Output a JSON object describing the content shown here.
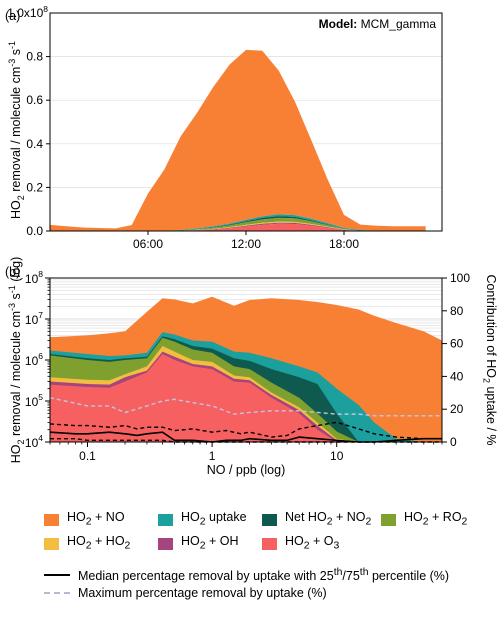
{
  "chart_data": [
    {
      "panel_label": "(a)",
      "type": "area",
      "stacked": true,
      "annotation": {
        "bold": "Model:",
        "rest": " MCM_gamma"
      },
      "ylabel": "HO<sub>2</sub> removal / molecule cm<sup>-3</sup> s<sup>-1</sup>",
      "y_multiplier": "1.0x10",
      "y_multiplier_exp": "8",
      "ylim": [
        0,
        1.0
      ],
      "yticks": [
        0.0,
        0.2,
        0.4,
        0.6,
        0.8
      ],
      "ytick_labels": [
        "0.0",
        "0.2",
        "0.4",
        "0.6",
        "0.8"
      ],
      "xlim": [
        0,
        24
      ],
      "xticks": [
        6,
        12,
        18
      ],
      "xtick_labels": [
        "06:00",
        "12:00",
        "18:00"
      ],
      "grid": true,
      "x": [
        0,
        1,
        2,
        3,
        4,
        5,
        6,
        7,
        8,
        9,
        10,
        11,
        12,
        13,
        14,
        15,
        16,
        17,
        18,
        19,
        20,
        21,
        22,
        23
      ],
      "series": [
        {
          "name": "HO<sub>2</sub> + O<sub>3</sub>",
          "color": "#f76060",
          "values": [
            0.0,
            0.0,
            0.0,
            0.0,
            0.0,
            0.0,
            0.0,
            0.0,
            0.001,
            0.003,
            0.006,
            0.012,
            0.02,
            0.028,
            0.033,
            0.032,
            0.024,
            0.014,
            0.005,
            0.001,
            0.0,
            0.0,
            0.0,
            0.0
          ]
        },
        {
          "name": "HO<sub>2</sub> + OH",
          "color": "#a6447e",
          "values": [
            0.0,
            0.0,
            0.0,
            0.0,
            0.0,
            0.0,
            0.0,
            0.0,
            0.0,
            0.001,
            0.002,
            0.003,
            0.004,
            0.005,
            0.005,
            0.005,
            0.004,
            0.003,
            0.001,
            0.0,
            0.0,
            0.0,
            0.0,
            0.0
          ]
        },
        {
          "name": "HO<sub>2</sub> + HO<sub>2</sub>",
          "color": "#f2bd40",
          "values": [
            0.0,
            0.0,
            0.0,
            0.0,
            0.0,
            0.0,
            0.0,
            0.0,
            0.0,
            0.001,
            0.002,
            0.003,
            0.004,
            0.005,
            0.005,
            0.005,
            0.004,
            0.003,
            0.001,
            0.0,
            0.0,
            0.0,
            0.0,
            0.0
          ]
        },
        {
          "name": "HO<sub>2</sub> + RO<sub>2</sub>",
          "color": "#7f9f2e",
          "values": [
            0.0,
            0.0,
            0.0,
            0.0,
            0.0,
            0.0,
            0.0,
            0.0,
            0.001,
            0.003,
            0.005,
            0.008,
            0.012,
            0.015,
            0.017,
            0.016,
            0.012,
            0.007,
            0.002,
            0.0,
            0.0,
            0.0,
            0.0,
            0.0
          ]
        },
        {
          "name": "Net HO<sub>2</sub> + NO<sub>2</sub>",
          "color": "#0f5a4e",
          "values": [
            0.0,
            0.0,
            0.0,
            0.0,
            0.0,
            0.0,
            0.0,
            0.0,
            0.0,
            0.001,
            0.002,
            0.003,
            0.005,
            0.007,
            0.008,
            0.007,
            0.005,
            0.003,
            0.001,
            0.0,
            0.0,
            0.0,
            0.0,
            0.0
          ]
        },
        {
          "name": "HO<sub>2</sub> uptake",
          "color": "#1ba09e",
          "values": [
            0.002,
            0.002,
            0.002,
            0.002,
            0.002,
            0.002,
            0.002,
            0.002,
            0.002,
            0.003,
            0.004,
            0.005,
            0.006,
            0.007,
            0.008,
            0.008,
            0.007,
            0.006,
            0.004,
            0.003,
            0.002,
            0.002,
            0.002,
            0.002
          ]
        },
        {
          "name": "HO<sub>2</sub> + NO",
          "color": "#f88035",
          "values": [
            0.026,
            0.02,
            0.014,
            0.012,
            0.01,
            0.025,
            0.17,
            0.28,
            0.43,
            0.53,
            0.64,
            0.73,
            0.78,
            0.76,
            0.66,
            0.52,
            0.36,
            0.2,
            0.06,
            0.025,
            0.022,
            0.02,
            0.02,
            0.02
          ]
        }
      ]
    },
    {
      "panel_label": "(b)",
      "type": "area",
      "stacked": true,
      "xlabel": "NO / ppb (log)",
      "xscale": "log",
      "xlim": [
        0.05,
        70
      ],
      "xticks": [
        0.1,
        1,
        10
      ],
      "xtick_labels": [
        "0.1",
        "1",
        "10"
      ],
      "ylabel": "HO<sub>2</sub> removal / molecule cm<sup>-3</sup> s<sup>-1</sup> (log)",
      "yscale": "log",
      "ylim": [
        10000,
        100000000
      ],
      "yticks": [
        10000,
        100000,
        1000000,
        10000000,
        100000000
      ],
      "ytick_labels": [
        [
          "10",
          "4"
        ],
        [
          "10",
          "5"
        ],
        [
          "10",
          "6"
        ],
        [
          "10",
          "7"
        ],
        [
          "10",
          "8"
        ]
      ],
      "y2label": "Contribution of HO<sub>2</sub> uptake / %",
      "y2lim": [
        0,
        100
      ],
      "y2ticks": [
        0,
        20,
        40,
        60,
        80,
        100
      ],
      "y2tick_labels": [
        "0",
        "20",
        "40",
        "60",
        "80",
        "100"
      ],
      "grid": true,
      "x": [
        0.05,
        0.1,
        0.15,
        0.2,
        0.3,
        0.4,
        0.5,
        0.7,
        1,
        1.5,
        2,
        3,
        5,
        7,
        10,
        15,
        20,
        30,
        50,
        70
      ],
      "series": [
        {
          "name": "HO<sub>2</sub> + O<sub>3</sub>",
          "color": "#f76060",
          "cumulative_top": [
            250000,
            220000,
            210000,
            300000,
            500000,
            1400000,
            1000000,
            700000,
            600000,
            300000,
            280000,
            120000,
            50000,
            20000,
            10000,
            10000,
            10000,
            10000,
            10000,
            10000
          ]
        },
        {
          "name": "HO<sub>2</sub> + OH",
          "color": "#a6447e",
          "cumulative_top": [
            300000,
            260000,
            250000,
            380000,
            550000,
            1600000,
            1200000,
            800000,
            700000,
            350000,
            320000,
            140000,
            60000,
            25000,
            11000,
            10000,
            10000,
            10000,
            10000,
            10000
          ]
        },
        {
          "name": "HO<sub>2</sub> + HO<sub>2</sub>",
          "color": "#f2bd40",
          "cumulative_top": [
            380000,
            330000,
            320000,
            450000,
            700000,
            2200000,
            1600000,
            1000000,
            900000,
            420000,
            380000,
            160000,
            70000,
            30000,
            12000,
            10000,
            10000,
            10000,
            10000,
            10000
          ]
        },
        {
          "name": "HO<sub>2</sub> + RO<sub>2</sub>",
          "color": "#7f9f2e",
          "cumulative_top": [
            1300000,
            1000000,
            900000,
            1000000,
            1100000,
            3500000,
            2800000,
            1800000,
            1500000,
            700000,
            600000,
            280000,
            120000,
            50000,
            18000,
            10000,
            10000,
            10000,
            10000,
            10000
          ]
        },
        {
          "name": "Net HO<sub>2</sub> + NO<sub>2</sub>",
          "color": "#0f5a4e",
          "cumulative_top": [
            1400000,
            1100000,
            1000000,
            1100000,
            1200000,
            3800000,
            3200000,
            2200000,
            1900000,
            1100000,
            950000,
            600000,
            380000,
            260000,
            50000,
            10000,
            10000,
            10000,
            10000,
            10000
          ]
        },
        {
          "name": "HO<sub>2</sub> uptake",
          "color": "#1ba09e",
          "cumulative_top": [
            1700000,
            1400000,
            1250000,
            1300000,
            1500000,
            4800000,
            4200000,
            3000000,
            2800000,
            1600000,
            1500000,
            1100000,
            700000,
            500000,
            200000,
            80000,
            30000,
            12000,
            10000,
            10000
          ]
        },
        {
          "name": "HO<sub>2</sub> + NO",
          "color": "#f88035",
          "cumulative_top": [
            3600000,
            4000000,
            4500000,
            5000000,
            15000000,
            32000000,
            30000000,
            24000000,
            35000000,
            21000000,
            29000000,
            32000000,
            29000000,
            26000000,
            22000000,
            17000000,
            12000000,
            8000000,
            5000000,
            3000000
          ]
        }
      ],
      "lines": [
        {
          "name": "Median percentage removal by uptake with 25<sup>th</sup>/75<sup>th</sup> percentile (%)",
          "style": "solid",
          "color": "#000000",
          "axis": "right",
          "x": [
            0.05,
            0.08,
            0.1,
            0.15,
            0.2,
            0.25,
            0.3,
            0.4,
            0.5,
            0.7,
            1,
            1.3,
            1.7,
            2,
            3,
            4,
            5,
            7,
            10,
            15,
            20,
            30,
            50,
            70
          ],
          "values": [
            6,
            5,
            5,
            6,
            5,
            4,
            5,
            6,
            1,
            1,
            0,
            1,
            1,
            2,
            1,
            1,
            3,
            2,
            1,
            0,
            0,
            1,
            2,
            2
          ]
        },
        {
          "name": "75th percentile",
          "style": "dashed",
          "color": "#000000",
          "axis": "right",
          "x": [
            0.05,
            0.08,
            0.1,
            0.15,
            0.2,
            0.25,
            0.3,
            0.4,
            0.5,
            0.7,
            1,
            1.3,
            1.7,
            2,
            3,
            4,
            5,
            7,
            10,
            15,
            20,
            30,
            50,
            70
          ],
          "values": [
            11,
            10,
            10,
            9,
            10,
            8,
            9,
            9,
            7,
            8,
            6,
            7,
            5,
            6,
            3,
            4,
            8,
            10,
            12,
            8,
            5,
            3,
            2,
            2
          ]
        },
        {
          "name": "25th percentile",
          "style": "dashed",
          "color": "#000000",
          "axis": "right",
          "x": [
            0.05,
            0.08,
            0.1,
            0.15,
            0.2,
            0.25,
            0.3,
            0.4,
            0.5,
            0.7,
            1,
            1.3,
            1.7,
            2,
            3,
            4,
            5,
            7,
            10,
            15,
            20,
            30,
            50,
            70
          ],
          "values": [
            2,
            2,
            1,
            1,
            1,
            1,
            1,
            1,
            0,
            0,
            0,
            0,
            0,
            0,
            0,
            0,
            0,
            0,
            0,
            0,
            0,
            0,
            0,
            0
          ]
        },
        {
          "name": "Maximum percentage removal by uptake (%)",
          "style": "dashed",
          "color": "#c4c4e0",
          "axis": "right",
          "x": [
            0.05,
            0.1,
            0.15,
            0.2,
            0.3,
            0.4,
            0.5,
            0.7,
            1,
            1.5,
            2,
            3,
            5,
            7,
            10,
            15,
            20,
            30,
            50,
            70
          ],
          "values": [
            27,
            22,
            22,
            18,
            22,
            25,
            26,
            24,
            22,
            17,
            18,
            19,
            19,
            18,
            17,
            17,
            16,
            16,
            16,
            16
          ]
        }
      ]
    }
  ],
  "legend": {
    "areas": [
      {
        "label": "HO<sub>2</sub> + NO",
        "color": "#f88035"
      },
      {
        "label": "HO<sub>2</sub> uptake",
        "color": "#1ba09e"
      },
      {
        "label": "Net HO<sub>2</sub> + NO<sub>2</sub>",
        "color": "#0f5a4e"
      },
      {
        "label": "HO<sub>2</sub> + RO<sub>2</sub>",
        "color": "#7f9f2e"
      },
      {
        "label": "HO<sub>2</sub> + HO<sub>2</sub>",
        "color": "#f2bd40"
      },
      {
        "label": "HO<sub>2</sub> + OH",
        "color": "#a6447e"
      },
      {
        "label": "HO<sub>2</sub> + O<sub>3</sub>",
        "color": "#f76060"
      }
    ],
    "lines": [
      {
        "label": "Median percentage removal by uptake with 25<sup>th</sup>/75<sup>th</sup> percentile (%)",
        "style": "solid",
        "color": "#000000"
      },
      {
        "label": "Maximum percentage removal by uptake (%)",
        "style": "dashed",
        "color": "#b8b8d0"
      }
    ]
  }
}
